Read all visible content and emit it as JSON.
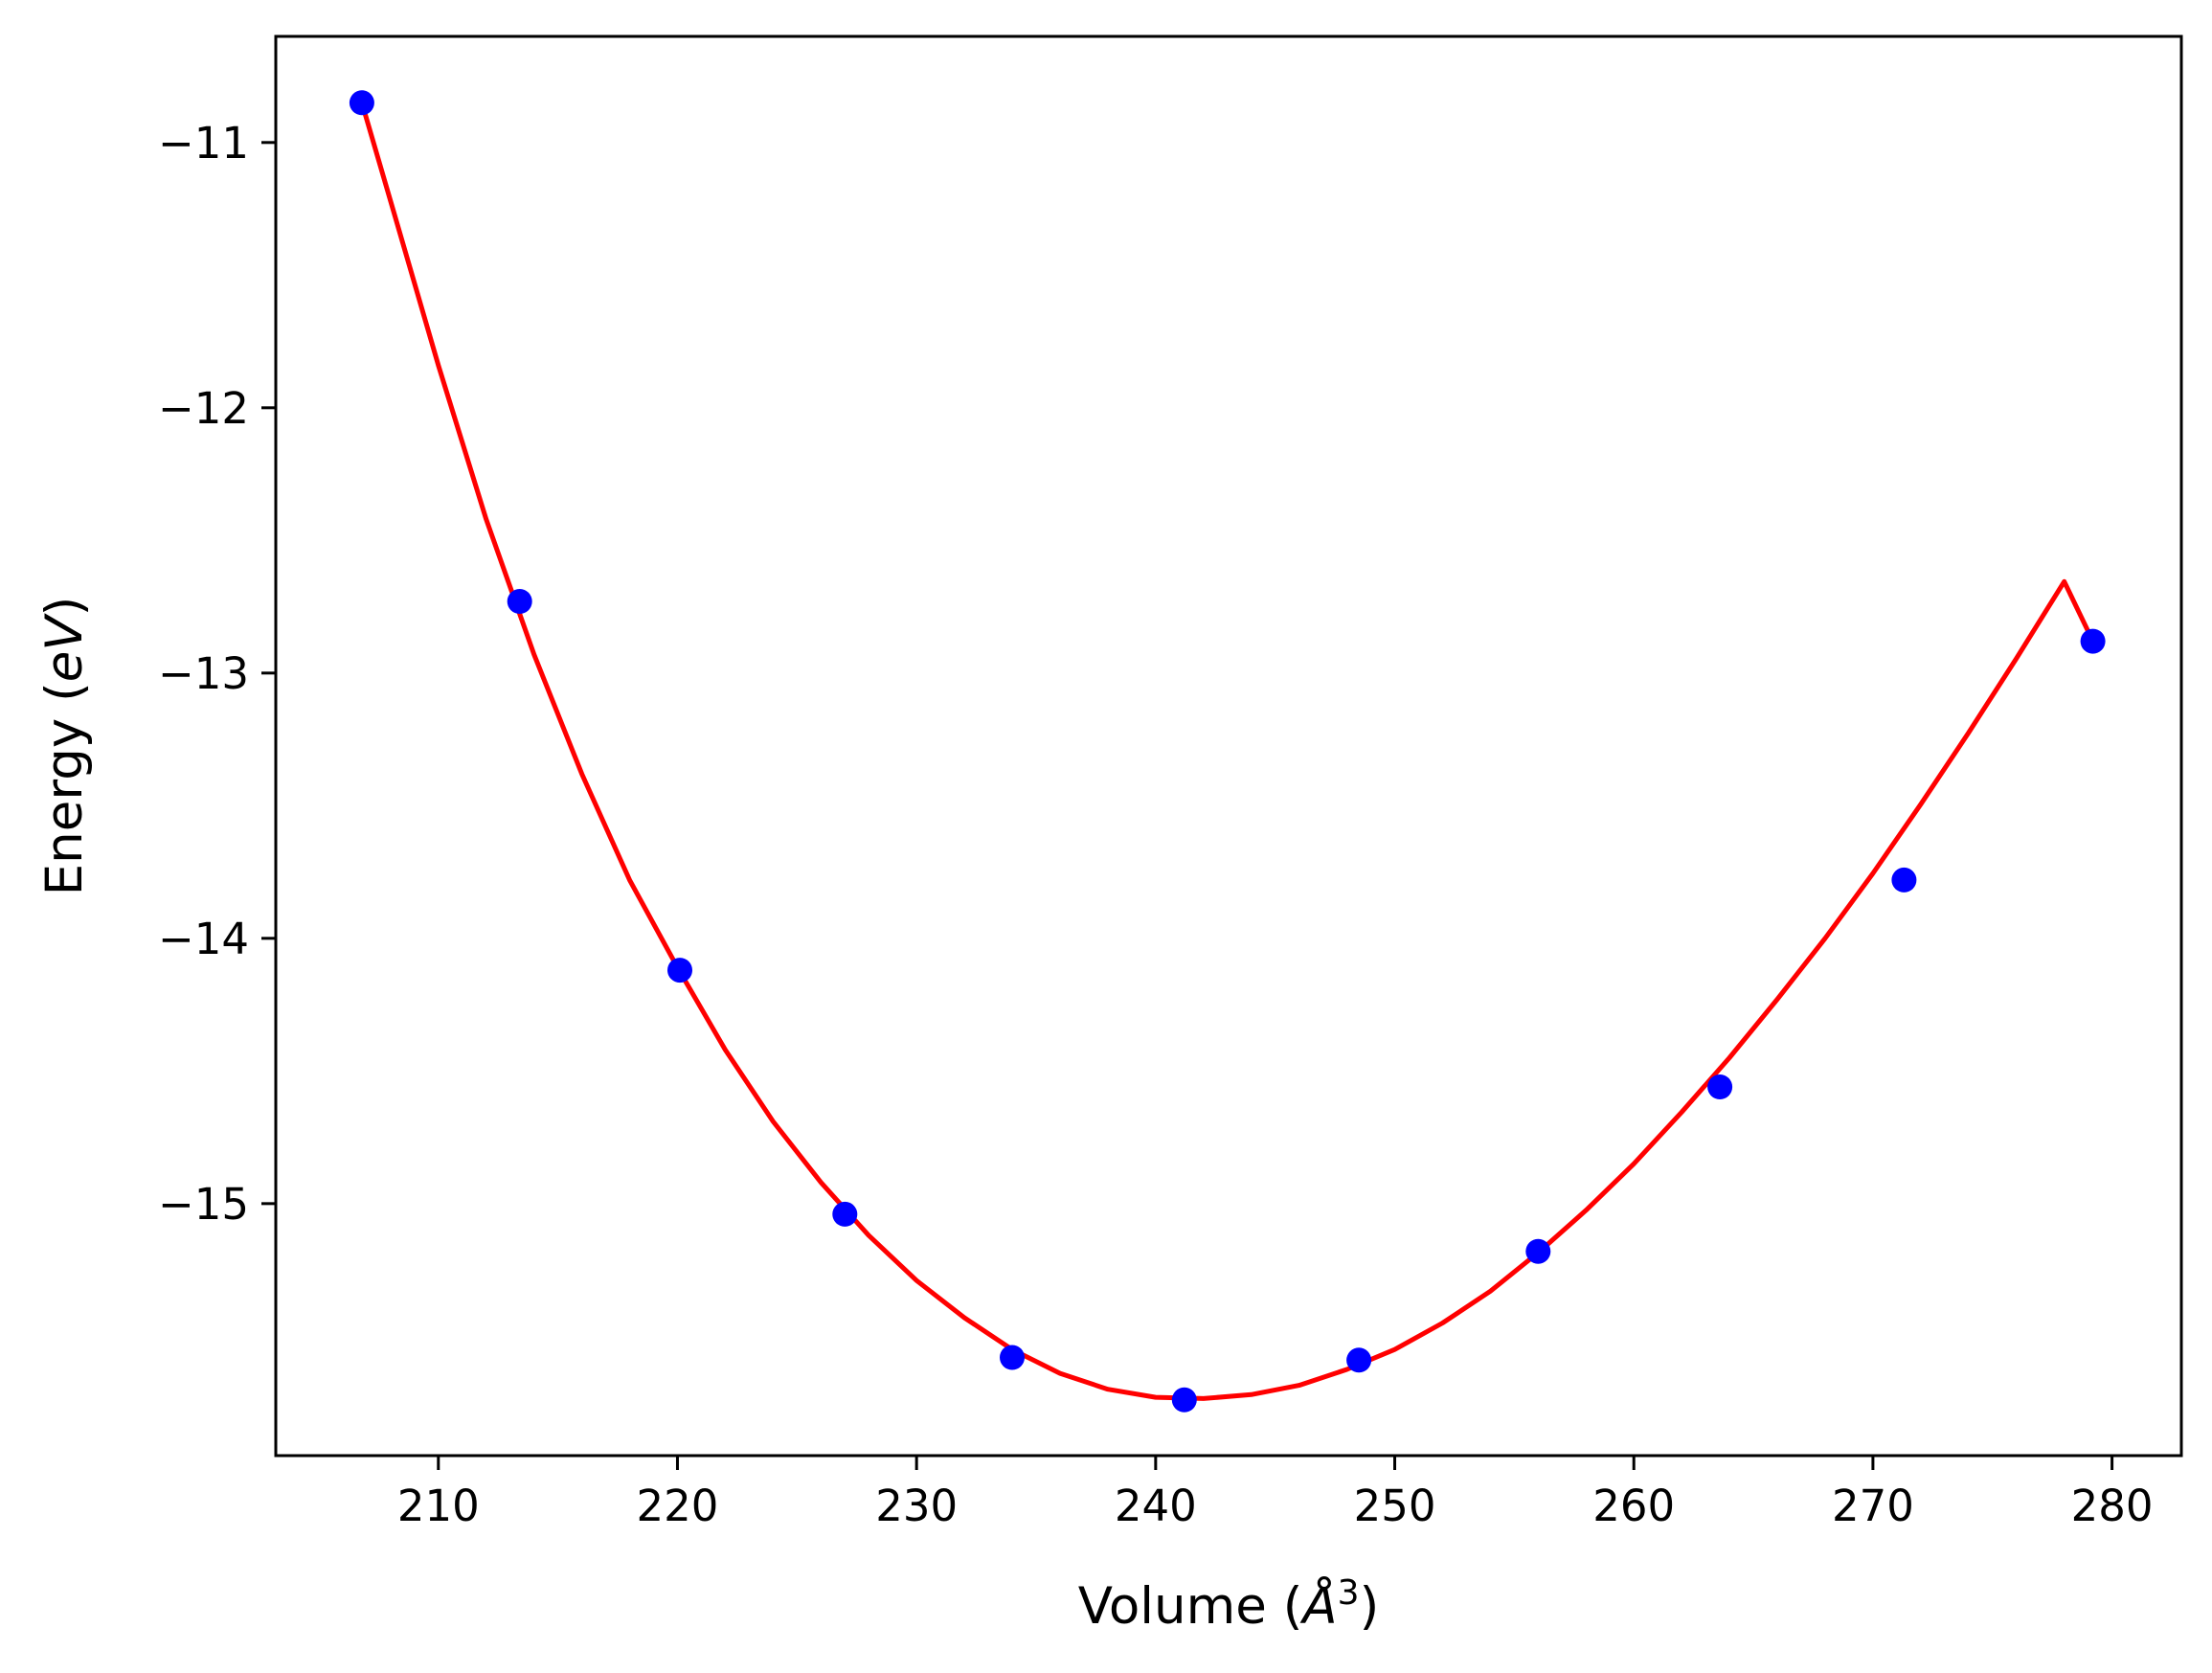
{
  "chart_data": {
    "type": "scatter",
    "title": "",
    "xlabel": "Volume ($\\AA^3$)",
    "ylabel": "Energy ($eV$)",
    "xlabel_parts": {
      "pre": "Volume (",
      "symbol": "Å",
      "sup": "3",
      "post": ")"
    },
    "ylabel_parts": {
      "pre": "Energy (",
      "italic": "eV",
      "post": ")"
    },
    "xlim": [
      203.2,
      282.9
    ],
    "ylim": [
      -15.95,
      -10.6
    ],
    "xticks": [
      210,
      220,
      230,
      240,
      250,
      260,
      270,
      280
    ],
    "yticks": [
      -11,
      -12,
      -13,
      -14,
      -15
    ],
    "xtick_labels": [
      "210",
      "220",
      "230",
      "240",
      "250",
      "260",
      "270",
      "280"
    ],
    "ytick_labels": [
      "−11",
      "−12",
      "−13",
      "−14",
      "−15"
    ],
    "grid": false,
    "series": [
      {
        "kind": "points",
        "color": "#0000ff",
        "x": [
          206.8,
          213.4,
          220.1,
          227.0,
          234.0,
          241.2,
          248.5,
          256.0,
          263.6,
          271.3,
          279.2
        ],
        "y": [
          -10.85,
          -12.73,
          -14.12,
          -15.04,
          -15.58,
          -15.74,
          -15.59,
          -15.18,
          -14.56,
          -13.78,
          -12.88
        ]
      },
      {
        "kind": "fit-curve",
        "color": "#ff0000",
        "x": [
          206.8,
          208,
          210,
          212,
          214,
          216,
          218,
          220,
          222,
          224,
          226,
          228,
          230,
          232,
          234,
          236,
          238,
          240,
          242,
          244,
          246,
          248,
          250,
          252,
          254,
          256,
          258,
          260,
          262,
          264,
          266,
          268,
          270,
          272,
          274,
          276,
          278,
          279.2
        ],
        "y": [
          -10.85,
          -11.22,
          -11.84,
          -12.42,
          -12.93,
          -13.38,
          -13.78,
          -14.11,
          -14.42,
          -14.69,
          -14.92,
          -15.12,
          -15.29,
          -15.43,
          -15.55,
          -15.64,
          -15.7,
          -15.73,
          -15.735,
          -15.72,
          -15.685,
          -15.625,
          -15.55,
          -15.45,
          -15.33,
          -15.185,
          -15.025,
          -14.85,
          -14.655,
          -14.45,
          -14.23,
          -14.0,
          -13.755,
          -13.495,
          -13.225,
          -12.945,
          -12.655,
          -12.88
        ]
      }
    ]
  }
}
